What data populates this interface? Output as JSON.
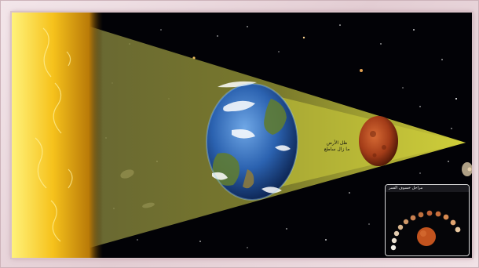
{
  "diagram": {
    "subject": "lunar eclipse illustration",
    "elements": [
      {
        "name": "sun",
        "color": "#f4c21e"
      },
      {
        "name": "earth",
        "color": "#2b62b0"
      },
      {
        "name": "moon",
        "color": "#b4441c"
      },
      {
        "name": "earth-shadow-cone",
        "color": "#c8c832"
      }
    ],
    "earth_label": {
      "line1": "ظل الأرض",
      "line2": "ما زال ساطع"
    },
    "inset": {
      "header": "مراحل خسوف القمر",
      "phase_count": 12
    }
  }
}
